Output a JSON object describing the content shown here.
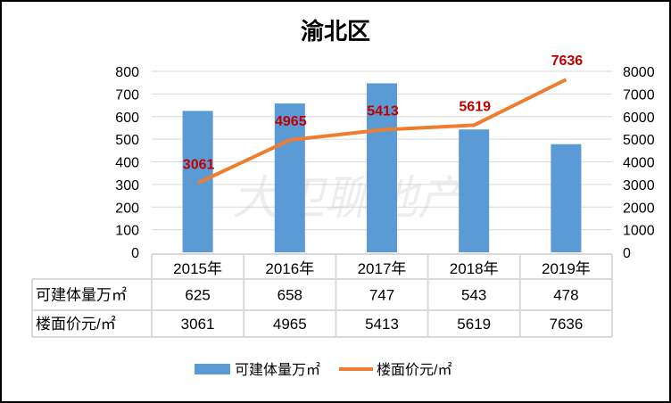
{
  "chart_data": {
    "type": "bar+line",
    "title": "渝北区",
    "categories": [
      "2015年",
      "2016年",
      "2017年",
      "2018年",
      "2019年"
    ],
    "series": [
      {
        "name": "可建体量万㎡",
        "type": "bar",
        "axis": "left",
        "color": "#5B9BD5",
        "values": [
          625,
          658,
          747,
          543,
          478
        ]
      },
      {
        "name": "楼面价元/㎡",
        "type": "line",
        "axis": "right",
        "color": "#ED7D31",
        "values": [
          3061,
          4965,
          5413,
          5619,
          7636
        ],
        "data_labels": true,
        "label_color": "#C00000"
      }
    ],
    "left_axis": {
      "ylim": [
        0,
        800
      ],
      "ticks": [
        "0",
        "100",
        "200",
        "300",
        "400",
        "500",
        "600",
        "700",
        "800"
      ]
    },
    "right_axis": {
      "ylim": [
        0,
        8000
      ],
      "ticks": [
        "0",
        "1000",
        "2000",
        "3000",
        "4000",
        "5000",
        "6000",
        "7000",
        "8000"
      ]
    },
    "grid": true,
    "legend": "bottom",
    "data_table": {
      "rows": [
        {
          "label": "可建体量万㎡",
          "values": [
            "625",
            "658",
            "747",
            "543",
            "478"
          ]
        },
        {
          "label": "楼面价元/㎡",
          "values": [
            "3061",
            "4965",
            "5413",
            "5619",
            "7636"
          ]
        }
      ]
    },
    "watermark": "大卫聊地产"
  }
}
